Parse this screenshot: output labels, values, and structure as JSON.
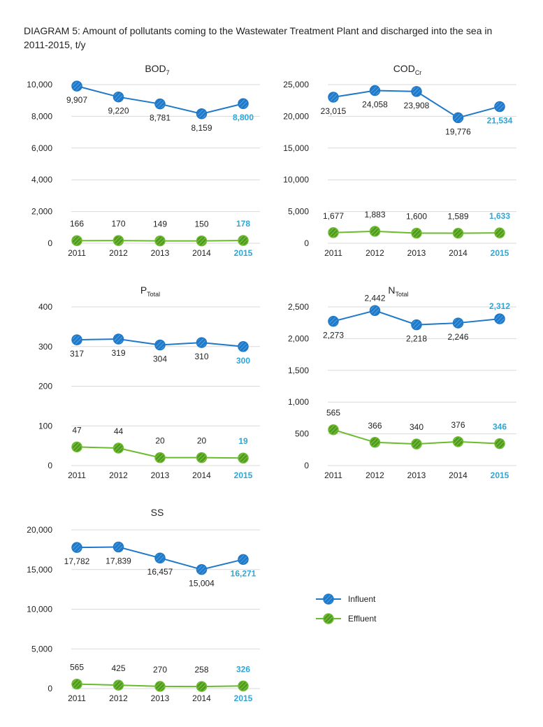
{
  "title": "DIAGRAM 5: Amount of pollutants coming to the Wastewater Treatment Plant and discharged into the sea in 2011-2015, t/y",
  "colors": {
    "influent": "#1f78c8",
    "effluent": "#6cbb2f",
    "highlight": "#2ea6d6",
    "grid": "#d9d9d9"
  },
  "legend": {
    "placement": "bottom-right",
    "items": [
      {
        "label": "Influent",
        "color": "#1f78c8"
      },
      {
        "label": "Effluent",
        "color": "#6cbb2f"
      }
    ]
  },
  "chart_data": [
    {
      "type": "line",
      "title": "BOD",
      "title_sub": "7",
      "title_sub_position": "sub",
      "categories": [
        "2011",
        "2012",
        "2013",
        "2014",
        "2015"
      ],
      "highlight_category": "2015",
      "ylim": [
        0,
        10000
      ],
      "yticks": [
        0,
        2000,
        4000,
        6000,
        8000,
        10000
      ],
      "ytick_labels": [
        "0",
        "2,000",
        "4,000",
        "6,000",
        "8,000",
        "10,000"
      ],
      "grid": true,
      "series": [
        {
          "name": "Influent",
          "values": [
            9907,
            9220,
            8781,
            8159,
            8800
          ],
          "labels": [
            "9,907",
            "9,220",
            "8,781",
            "8,159",
            "8,800"
          ]
        },
        {
          "name": "Effluent",
          "values": [
            166,
            170,
            149,
            150,
            178
          ],
          "labels": [
            "166",
            "170",
            "149",
            "150",
            "178"
          ]
        }
      ]
    },
    {
      "type": "line",
      "title": "COD",
      "title_sub": "Cr",
      "title_sub_position": "sub",
      "categories": [
        "2011",
        "2012",
        "2013",
        "2014",
        "2015"
      ],
      "highlight_category": "2015",
      "ylim": [
        0,
        25000
      ],
      "yticks": [
        0,
        5000,
        10000,
        15000,
        20000,
        25000
      ],
      "ytick_labels": [
        "0",
        "5,000",
        "10,000",
        "15,000",
        "20,000",
        "25,000"
      ],
      "grid": true,
      "series": [
        {
          "name": "Influent",
          "values": [
            23015,
            24058,
            23908,
            19776,
            21534
          ],
          "labels": [
            "23,015",
            "24,058",
            "23,908",
            "19,776",
            "21,534"
          ]
        },
        {
          "name": "Effluent",
          "values": [
            1677,
            1883,
            1600,
            1589,
            1633
          ],
          "labels": [
            "1,677",
            "1,883",
            "1,600",
            "1,589",
            "1,633"
          ]
        }
      ]
    },
    {
      "type": "line",
      "title": "P",
      "title_sub": "Total",
      "title_sub_position": "sub",
      "categories": [
        "2011",
        "2012",
        "2013",
        "2014",
        "2015"
      ],
      "highlight_category": "2015",
      "ylim": [
        0,
        400
      ],
      "yticks": [
        0,
        100,
        200,
        300,
        400
      ],
      "ytick_labels": [
        "0",
        "100",
        "200",
        "300",
        "400"
      ],
      "grid": true,
      "series": [
        {
          "name": "Influent",
          "values": [
            317,
            319,
            304,
            310,
            300
          ],
          "labels": [
            "317",
            "319",
            "304",
            "310",
            "300"
          ]
        },
        {
          "name": "Effluent",
          "values": [
            47,
            44,
            20,
            20,
            19
          ],
          "labels": [
            "47",
            "44",
            "20",
            "20",
            "19"
          ]
        }
      ]
    },
    {
      "type": "line",
      "title": "N",
      "title_sub": "Total",
      "title_sub_position": "sub",
      "categories": [
        "2011",
        "2012",
        "2013",
        "2014",
        "2015"
      ],
      "highlight_category": "2015",
      "ylim": [
        0,
        2500
      ],
      "yticks": [
        0,
        500,
        1000,
        1500,
        2000,
        2500
      ],
      "ytick_labels": [
        "0",
        "500",
        "1,000",
        "1,500",
        "2,000",
        "2,500"
      ],
      "grid": true,
      "series": [
        {
          "name": "Influent",
          "values": [
            2273,
            2442,
            2218,
            2246,
            2312
          ],
          "labels": [
            "2,273",
            "2,442",
            "2,218",
            "2,246",
            "2,312"
          ]
        },
        {
          "name": "Effluent",
          "values": [
            565,
            366,
            340,
            376,
            346
          ],
          "labels": [
            "565",
            "366",
            "340",
            "376",
            "346"
          ]
        }
      ]
    },
    {
      "type": "line",
      "title": "SS",
      "title_sub": "",
      "title_sub_position": "sub",
      "categories": [
        "2011",
        "2012",
        "2013",
        "2014",
        "2015"
      ],
      "highlight_category": "2015",
      "ylim": [
        0,
        20000
      ],
      "yticks": [
        0,
        5000,
        10000,
        15000,
        20000
      ],
      "ytick_labels": [
        "0",
        "5,000",
        "10,000",
        "15,000",
        "20,000"
      ],
      "grid": true,
      "series": [
        {
          "name": "Influent",
          "values": [
            17782,
            17839,
            16457,
            15004,
            16271
          ],
          "labels": [
            "17,782",
            "17,839",
            "16,457",
            "15,004",
            "16,271"
          ]
        },
        {
          "name": "Effluent",
          "values": [
            565,
            425,
            270,
            258,
            326
          ],
          "labels": [
            "565",
            "425",
            "270",
            "258",
            "326"
          ]
        }
      ]
    }
  ]
}
